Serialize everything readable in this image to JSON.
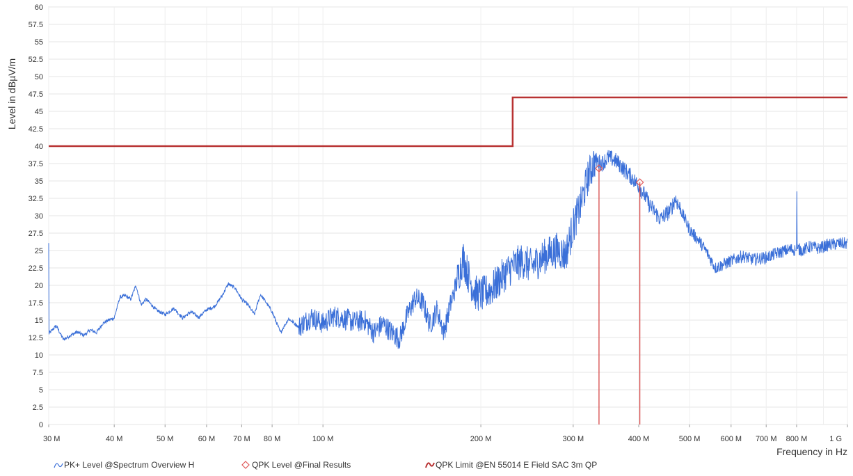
{
  "chart_data": {
    "type": "line",
    "xlabel": "Frequency in Hz",
    "ylabel": "Level in dBµV/m",
    "x_scale": "log",
    "xlim": [
      30,
      1000
    ],
    "ylim": [
      0,
      60
    ],
    "grid": true,
    "legend_position": "bottom",
    "x_ticks": [
      {
        "value": 30,
        "label": "30 M"
      },
      {
        "value": 40,
        "label": "40 M"
      },
      {
        "value": 50,
        "label": "50 M"
      },
      {
        "value": 60,
        "label": "60 M"
      },
      {
        "value": 70,
        "label": "70 M"
      },
      {
        "value": 80,
        "label": "80 M"
      },
      {
        "value": 100,
        "label": "100 M"
      },
      {
        "value": 200,
        "label": "200 M"
      },
      {
        "value": 300,
        "label": "300 M"
      },
      {
        "value": 400,
        "label": "400 M"
      },
      {
        "value": 500,
        "label": "500 M"
      },
      {
        "value": 600,
        "label": "600 M"
      },
      {
        "value": 700,
        "label": "700 M"
      },
      {
        "value": 800,
        "label": "800 M"
      },
      {
        "value": 1000,
        "label": "1 G"
      }
    ],
    "y_ticks": [
      0,
      2.5,
      5,
      7.5,
      10,
      12.5,
      15,
      17.5,
      20,
      22.5,
      25,
      27.5,
      30,
      32.5,
      35,
      37.5,
      40,
      42.5,
      45,
      47.5,
      50,
      52.5,
      55,
      57.5,
      60
    ],
    "y_tick_labels": [
      "0",
      "2.5",
      "5",
      "7.5",
      "10",
      "12.5",
      "15",
      "17.5",
      "20",
      "22.5",
      "25",
      "27.5",
      "30",
      "32.5",
      "35",
      "37.5",
      "40",
      "42.5",
      "45",
      "47.5",
      "50",
      "52.5",
      "55",
      "57.5",
      "60"
    ],
    "series": [
      {
        "name": "PK+ Level @Spectrum Overview H",
        "color": "#3a6fd8",
        "kind": "line",
        "x": [
          30,
          31,
          32,
          33,
          34,
          35,
          36,
          37,
          38,
          39,
          40,
          41,
          42,
          43,
          44,
          45,
          46,
          47,
          48,
          50,
          52,
          54,
          56,
          58,
          60,
          62,
          64,
          66,
          68,
          70,
          72,
          74,
          76,
          78,
          80,
          83,
          86,
          90,
          95,
          100,
          105,
          110,
          115,
          120,
          125,
          130,
          135,
          140,
          145,
          150,
          155,
          160,
          165,
          170,
          175,
          180,
          185,
          190,
          195,
          200,
          210,
          220,
          230,
          240,
          250,
          260,
          270,
          280,
          290,
          300,
          310,
          320,
          330,
          340,
          350,
          360,
          370,
          380,
          390,
          400,
          410,
          420,
          440,
          460,
          470,
          480,
          500,
          520,
          540,
          560,
          580,
          600,
          630,
          660,
          700,
          740,
          780,
          800,
          801,
          802,
          820,
          850,
          880,
          920,
          960,
          1000
        ],
        "y": [
          13.0,
          14.2,
          12.2,
          12.8,
          13.3,
          12.8,
          13.6,
          13.2,
          14.5,
          15.0,
          15.3,
          18.3,
          18.5,
          18.0,
          20.0,
          17.2,
          18.0,
          17.3,
          16.5,
          15.8,
          16.7,
          15.3,
          16.2,
          15.4,
          16.5,
          16.9,
          18.3,
          20.2,
          19.6,
          18.0,
          17.2,
          15.8,
          18.7,
          17.5,
          16.2,
          13.2,
          15.2,
          14.0,
          15.5,
          14.5,
          15.6,
          15.2,
          14.7,
          15.0,
          13.2,
          14.5,
          13.3,
          12.3,
          15.8,
          18.2,
          17.5,
          14.3,
          16.5,
          13.3,
          17.2,
          20.5,
          24.0,
          21.0,
          19.0,
          18.6,
          19.5,
          21.3,
          22.8,
          23.5,
          22.7,
          23.8,
          24.6,
          25.1,
          24.3,
          28.5,
          31.5,
          35.5,
          38.0,
          37.5,
          38.4,
          38.0,
          37.2,
          36.2,
          35.3,
          34.3,
          33.0,
          31.5,
          29.5,
          30.8,
          32.5,
          31.0,
          28.0,
          26.5,
          24.7,
          22.5,
          23.0,
          23.5,
          24.2,
          23.7,
          24.0,
          24.7,
          25.2,
          25.0,
          35.0,
          25.3,
          25.0,
          25.6,
          25.3,
          25.8,
          26.0,
          26.0
        ]
      },
      {
        "name": "QPK Level @Final Results",
        "color": "#e05a5a",
        "kind": "markers",
        "x": [
          336,
          402
        ],
        "y": [
          36.8,
          34.8
        ]
      },
      {
        "name": "QPK Limit @EN 55014 E Field SAC 3m QP",
        "color": "#b83232",
        "kind": "step",
        "x": [
          30,
          230,
          230,
          1000
        ],
        "y": [
          40,
          40,
          47,
          47
        ]
      }
    ]
  }
}
